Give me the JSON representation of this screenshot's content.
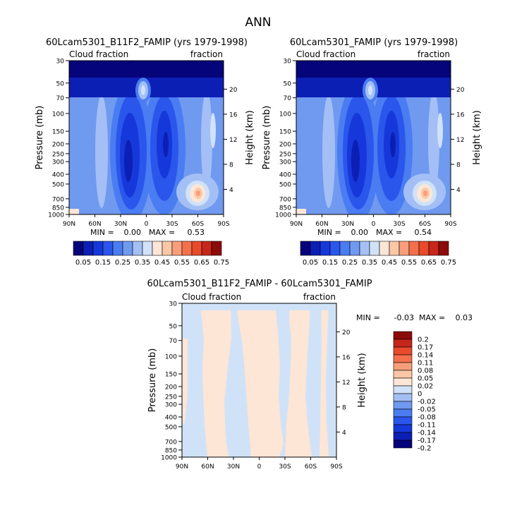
{
  "page_title": "ANN",
  "colors": {
    "fill_palette": [
      "#05047a",
      "#0c1fb5",
      "#1638db",
      "#2a56ec",
      "#4a7cf2",
      "#7099f0",
      "#a3bff5",
      "#d0e2f8",
      "#fde6d6",
      "#fbc7a6",
      "#f99e7a",
      "#f4704d",
      "#e84a2c",
      "#c7261b",
      "#8e0b0b"
    ],
    "diff_palette": [
      "#05047a",
      "#0c1fb5",
      "#1638db",
      "#2a56ec",
      "#4a7cf2",
      "#7099f0",
      "#a3bff5",
      "#d0e2f8",
      "#fde6d6",
      "#fbc7a6",
      "#f99e7a",
      "#f4704d",
      "#e84a2c",
      "#c7261b",
      "#8e0b0b"
    ]
  },
  "chart_data": [
    {
      "id": "panel-a",
      "type": "heatmap",
      "title": "60Lcam5301_B11F2_FAMIP (yrs 1979-1998)",
      "left_label": "Cloud fraction",
      "right_label": "fraction",
      "ylabel": "Pressure (mb)",
      "y2label": "Height (km)",
      "x_ticks": [
        "90N",
        "60N",
        "30N",
        "0",
        "30S",
        "60S",
        "90S"
      ],
      "y_ticks": [
        "30",
        "50",
        "70",
        "100",
        "150",
        "200",
        "250",
        "300",
        "400",
        "500",
        "700",
        "850",
        "1000"
      ],
      "y_tick_values": [
        30,
        50,
        70,
        100,
        150,
        200,
        250,
        300,
        400,
        500,
        700,
        850,
        1000
      ],
      "height_ticks": [
        "20",
        "16",
        "12",
        "8",
        "4"
      ],
      "height_tick_values": [
        20,
        16,
        12,
        8,
        4
      ],
      "ylim": [
        1000,
        30
      ],
      "xlim": [
        90,
        -90
      ],
      "stats": {
        "min_label": "MIN =",
        "min_value": "0.00",
        "max_label": "MAX =",
        "max_value": "0.53"
      },
      "colorbar_labels": [
        "0.05",
        "0.15",
        "0.25",
        "0.35",
        "0.45",
        "0.55",
        "0.65",
        "0.75"
      ],
      "contour_levels": [
        0.05,
        0.1,
        0.15,
        0.2,
        0.25,
        0.3,
        0.35,
        0.4,
        0.45,
        0.5,
        0.55,
        0.6,
        0.65,
        0.7,
        0.75
      ],
      "min": 0.0,
      "max": 0.53
    },
    {
      "id": "panel-b",
      "type": "heatmap",
      "title": "60Lcam5301_FAMIP (yrs 1979-1998)",
      "left_label": "Cloud fraction",
      "right_label": "fraction",
      "ylabel": "Pressure (mb)",
      "y2label": "Height (km)",
      "x_ticks": [
        "90N",
        "60N",
        "30N",
        "0",
        "30S",
        "60S",
        "90S"
      ],
      "y_ticks": [
        "30",
        "50",
        "70",
        "100",
        "150",
        "200",
        "250",
        "300",
        "400",
        "500",
        "700",
        "850",
        "1000"
      ],
      "y_tick_values": [
        30,
        50,
        70,
        100,
        150,
        200,
        250,
        300,
        400,
        500,
        700,
        850,
        1000
      ],
      "height_ticks": [
        "20",
        "16",
        "12",
        "8",
        "4"
      ],
      "height_tick_values": [
        20,
        16,
        12,
        8,
        4
      ],
      "ylim": [
        1000,
        30
      ],
      "xlim": [
        90,
        -90
      ],
      "stats": {
        "min_label": "MIN =",
        "min_value": "0.00",
        "max_label": "MAX =",
        "max_value": "0.54"
      },
      "colorbar_labels": [
        "0.05",
        "0.15",
        "0.25",
        "0.35",
        "0.45",
        "0.55",
        "0.65",
        "0.75"
      ],
      "contour_levels": [
        0.05,
        0.1,
        0.15,
        0.2,
        0.25,
        0.3,
        0.35,
        0.4,
        0.45,
        0.5,
        0.55,
        0.6,
        0.65,
        0.7,
        0.75
      ],
      "min": 0.0,
      "max": 0.54
    },
    {
      "id": "panel-diff",
      "type": "heatmap",
      "title": "60Lcam5301_B11F2_FAMIP - 60Lcam5301_FAMIP",
      "left_label": "Cloud fraction",
      "right_label": "fraction",
      "ylabel": "Pressure (mb)",
      "y2label": "Height (km)",
      "x_ticks": [
        "90N",
        "60N",
        "30N",
        "0",
        "30S",
        "60S",
        "90S"
      ],
      "y_ticks": [
        "30",
        "50",
        "70",
        "100",
        "150",
        "200",
        "250",
        "300",
        "400",
        "500",
        "700",
        "850",
        "1000"
      ],
      "y_tick_values": [
        30,
        50,
        70,
        100,
        150,
        200,
        250,
        300,
        400,
        500,
        700,
        850,
        1000
      ],
      "height_ticks": [
        "20",
        "16",
        "12",
        "8",
        "4"
      ],
      "height_tick_values": [
        20,
        16,
        12,
        8,
        4
      ],
      "ylim": [
        1000,
        30
      ],
      "xlim": [
        90,
        -90
      ],
      "stats": {
        "min_label": "MIN =",
        "min_value": "-0.03",
        "max_label": "MAX =",
        "max_value": "0.03"
      },
      "colorbar_labels": [
        "0.2",
        "0.17",
        "0.14",
        "0.11",
        "0.08",
        "0.05",
        "0.02",
        "0",
        "-0.02",
        "-0.05",
        "-0.08",
        "-0.11",
        "-0.14",
        "-0.17",
        "-0.2"
      ],
      "contour_levels": [
        -0.2,
        -0.17,
        -0.14,
        -0.11,
        -0.08,
        -0.05,
        -0.02,
        0,
        0.02,
        0.05,
        0.08,
        0.11,
        0.14,
        0.17,
        0.2
      ],
      "min": -0.03,
      "max": 0.03
    }
  ]
}
